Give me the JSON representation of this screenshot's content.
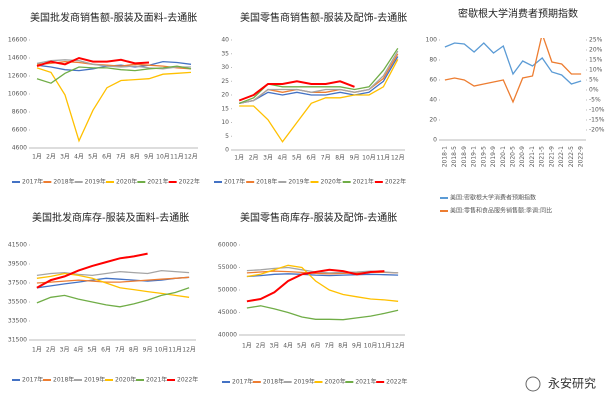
{
  "watermark": "永安研究",
  "chart_data": [
    {
      "type": "line",
      "title": "美国批发商销售额-服装及面料-去通胀",
      "categories": [
        "1月",
        "2月",
        "3月",
        "4月",
        "5月",
        "6月",
        "7月",
        "8月",
        "9月",
        "10月",
        "11月",
        "12月"
      ],
      "ylim": [
        4600,
        16600
      ],
      "yticks": [
        4600,
        6600,
        8600,
        10600,
        12600,
        14600,
        16600
      ],
      "legend": "bottom",
      "series": [
        {
          "name": "2017年",
          "color": "#4472c4",
          "values": [
            13800,
            13600,
            13300,
            13200,
            13400,
            13700,
            13800,
            13600,
            13800,
            14200,
            14100,
            13900
          ]
        },
        {
          "name": "2018年",
          "color": "#ed7d31",
          "values": [
            13900,
            14000,
            14200,
            14100,
            13900,
            13800,
            13700,
            13900,
            13800,
            13700,
            13500,
            13400
          ]
        },
        {
          "name": "2019年",
          "color": "#a5a5a5",
          "values": [
            14000,
            14300,
            14400,
            14300,
            13900,
            13700,
            13600,
            13700,
            13500,
            13400,
            13600,
            13600
          ]
        },
        {
          "name": "2020年",
          "color": "#ffc000",
          "values": [
            13500,
            13000,
            10500,
            5400,
            8800,
            11300,
            12100,
            12200,
            12300,
            12800,
            12900,
            13000
          ]
        },
        {
          "name": "2021年",
          "color": "#70ad47",
          "values": [
            12300,
            11800,
            12900,
            13600,
            13500,
            13500,
            13300,
            13200,
            13400,
            13500,
            13700,
            13400
          ]
        },
        {
          "name": "2022年",
          "color": "#ff0000",
          "values": [
            13700,
            14200,
            13900,
            14600,
            14200,
            14200,
            14400,
            14000,
            14100,
            null,
            null,
            null
          ]
        }
      ]
    },
    {
      "type": "line",
      "title": "美国零售商销售额-服装及配饰-去通胀",
      "categories": [
        "1月",
        "2月",
        "3月",
        "4月",
        "5月",
        "6月",
        "7月",
        "8月",
        "9月",
        "10月",
        "11月",
        "12月"
      ],
      "ylim": [
        0,
        40
      ],
      "yticks": [
        0,
        5,
        10,
        15,
        20,
        25,
        30,
        35,
        40
      ],
      "legend": "bottom",
      "series": [
        {
          "name": "2017年",
          "color": "#4472c4",
          "values": [
            17,
            18,
            21,
            20,
            21,
            20,
            20,
            21,
            20,
            21,
            25,
            34
          ]
        },
        {
          "name": "2018年",
          "color": "#ed7d31",
          "values": [
            17,
            18,
            22,
            21,
            22,
            21,
            21,
            22,
            21,
            22,
            26,
            35
          ]
        },
        {
          "name": "2019年",
          "color": "#a5a5a5",
          "values": [
            17,
            18,
            22,
            22,
            22,
            21,
            22,
            22,
            21,
            22,
            27,
            36
          ]
        },
        {
          "name": "2020年",
          "color": "#ffc000",
          "values": [
            16,
            16,
            11,
            3,
            10,
            17,
            19,
            19,
            20,
            20,
            23,
            33
          ]
        },
        {
          "name": "2021年",
          "color": "#70ad47",
          "values": [
            17,
            19,
            24,
            23,
            23,
            23,
            23,
            23,
            22,
            23,
            29,
            37
          ]
        },
        {
          "name": "2022年",
          "color": "#ff0000",
          "values": [
            18,
            20,
            24,
            24,
            25,
            24,
            24,
            25,
            23,
            null,
            null,
            null
          ]
        }
      ]
    },
    {
      "type": "line",
      "title": "密歇根大学消费者预期指数",
      "categories": [
        "2018-1",
        "2018-5",
        "2018-9",
        "2019-1",
        "2019-5",
        "2019-9",
        "2020-1",
        "2020-5",
        "2020-9",
        "2021-1",
        "2021-5",
        "2021-9",
        "2022-1",
        "2022-5",
        "2022-9"
      ],
      "ylim": [
        0,
        100
      ],
      "yticks": [
        0,
        20,
        40,
        60,
        80,
        100
      ],
      "y2lim": [
        -25,
        25
      ],
      "y2ticks": [
        {
          "value": -20,
          "label": "-20%"
        },
        {
          "value": -15,
          "label": "-15%"
        },
        {
          "value": -10,
          "label": "-10%"
        },
        {
          "value": -5,
          "label": "-5%"
        },
        {
          "value": 0,
          "label": "0%"
        },
        {
          "value": 5,
          "label": "5%"
        },
        {
          "value": 10,
          "label": "10%"
        },
        {
          "value": 15,
          "label": "15%"
        },
        {
          "value": 20,
          "label": "20%"
        },
        {
          "value": 25,
          "label": "25%"
        }
      ],
      "legend": "bottom",
      "series": [
        {
          "name": "美国:密歇根大学消费者预期指数",
          "color": "#5b9bd5",
          "values": [
            93,
            97,
            96,
            88,
            97,
            87,
            94,
            66,
            79,
            74,
            82,
            68,
            65,
            56,
            59
          ]
        },
        {
          "name": "美国:零售和食品服务销售额:季调:同比",
          "color": "#ed7d31",
          "axis": "y2",
          "values": [
            5,
            6,
            5,
            2,
            3,
            4,
            5,
            -6,
            6,
            7,
            28,
            14,
            13,
            8,
            8
          ]
        }
      ]
    },
    {
      "type": "line",
      "title": "美国批发商库存-服装及面料-去通胀",
      "categories": [
        "1月",
        "2月",
        "3月",
        "4月",
        "5月",
        "6月",
        "7月",
        "8月",
        "9月",
        "10月",
        "11月",
        "12月"
      ],
      "ylim": [
        31500,
        41500
      ],
      "yticks": [
        31500,
        33500,
        35500,
        37500,
        39500,
        41500
      ],
      "legend": "bottom",
      "series": [
        {
          "name": "2017年",
          "color": "#4472c4",
          "values": [
            37000,
            37200,
            37400,
            37600,
            37800,
            38000,
            37900,
            37800,
            37700,
            37800,
            38000,
            38100
          ]
        },
        {
          "name": "2018年",
          "color": "#ed7d31",
          "values": [
            37500,
            37600,
            37700,
            37800,
            37700,
            37600,
            37600,
            37700,
            37800,
            37900,
            38000,
            38100
          ]
        },
        {
          "name": "2019年",
          "color": "#a5a5a5",
          "values": [
            38300,
            38500,
            38600,
            38400,
            38300,
            38500,
            38700,
            38600,
            38500,
            38800,
            38700,
            38600
          ]
        },
        {
          "name": "2020年",
          "color": "#ffc000",
          "values": [
            38000,
            38200,
            38500,
            38300,
            38000,
            37500,
            37000,
            36800,
            36600,
            36400,
            36200,
            36000
          ]
        },
        {
          "name": "2021年",
          "color": "#70ad47",
          "values": [
            35400,
            36000,
            36200,
            35800,
            35500,
            35200,
            35000,
            35300,
            35700,
            36200,
            36500,
            37000
          ]
        },
        {
          "name": "2022年",
          "color": "#ff0000",
          "values": [
            37000,
            37800,
            38200,
            38800,
            39300,
            39700,
            40100,
            40300,
            40600,
            null,
            null,
            null
          ]
        }
      ]
    },
    {
      "type": "line",
      "title": "美国零售商库存-服装及配饰-去通胀",
      "categories": [
        "1月",
        "2月",
        "3月",
        "4月",
        "5月",
        "6月",
        "7月",
        "8月",
        "9月",
        "10月",
        "11月",
        "12月"
      ],
      "ylim": [
        40000,
        60000
      ],
      "yticks": [
        40000,
        45000,
        50000,
        55000,
        60000
      ],
      "legend": "bottom",
      "series": [
        {
          "name": "2017年",
          "color": "#4472c4",
          "values": [
            53000,
            53200,
            53500,
            53600,
            53500,
            53300,
            53200,
            53300,
            53400,
            53500,
            53400,
            53300
          ]
        },
        {
          "name": "2018年",
          "color": "#ed7d31",
          "values": [
            53800,
            54000,
            54200,
            54100,
            53900,
            53700,
            53600,
            53700,
            53800,
            53900,
            53900,
            53800
          ]
        },
        {
          "name": "2019年",
          "color": "#a5a5a5",
          "values": [
            54300,
            54500,
            54800,
            55000,
            54500,
            54000,
            53800,
            53900,
            54000,
            54200,
            54000,
            53800
          ]
        },
        {
          "name": "2020年",
          "color": "#ffc000",
          "values": [
            53000,
            53500,
            54500,
            55500,
            55000,
            52000,
            50000,
            49000,
            48500,
            48000,
            47800,
            47500
          ]
        },
        {
          "name": "2021年",
          "color": "#70ad47",
          "values": [
            46000,
            46500,
            45800,
            45000,
            44000,
            43500,
            43500,
            43400,
            43800,
            44200,
            44800,
            45500
          ]
        },
        {
          "name": "2022年",
          "color": "#ff0000",
          "values": [
            47500,
            48000,
            49500,
            52000,
            53500,
            54000,
            54500,
            54200,
            53500,
            54000,
            54200,
            null
          ]
        }
      ]
    }
  ]
}
